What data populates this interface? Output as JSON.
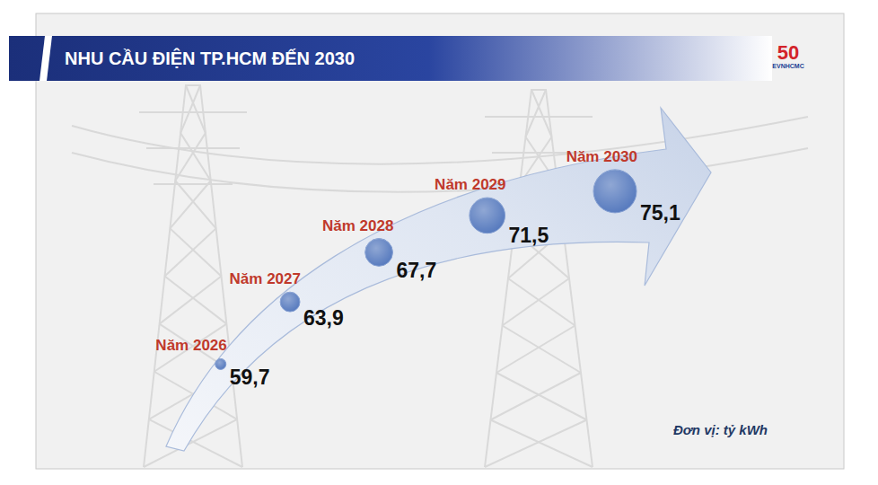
{
  "chart_data": {
    "type": "bubble",
    "title": "NHU CẦU ĐIỆN TP.HCM ĐẾN 2030",
    "categories": [
      "Năm 2026",
      "Năm 2027",
      "Năm 2028",
      "Năm 2029",
      "Năm 2030"
    ],
    "values": [
      59.7,
      63.9,
      67.7,
      71.5,
      75.1
    ],
    "value_labels": [
      "59,7",
      "63,9",
      "67,7",
      "71,5",
      "75,1"
    ],
    "color": "#5478bd",
    "data_labels": true,
    "tick_labels": false,
    "annotations": [
      "Đơn vị: tỷ kWh"
    ]
  },
  "logo": {
    "number": "50",
    "text": "EVNHCMC"
  }
}
